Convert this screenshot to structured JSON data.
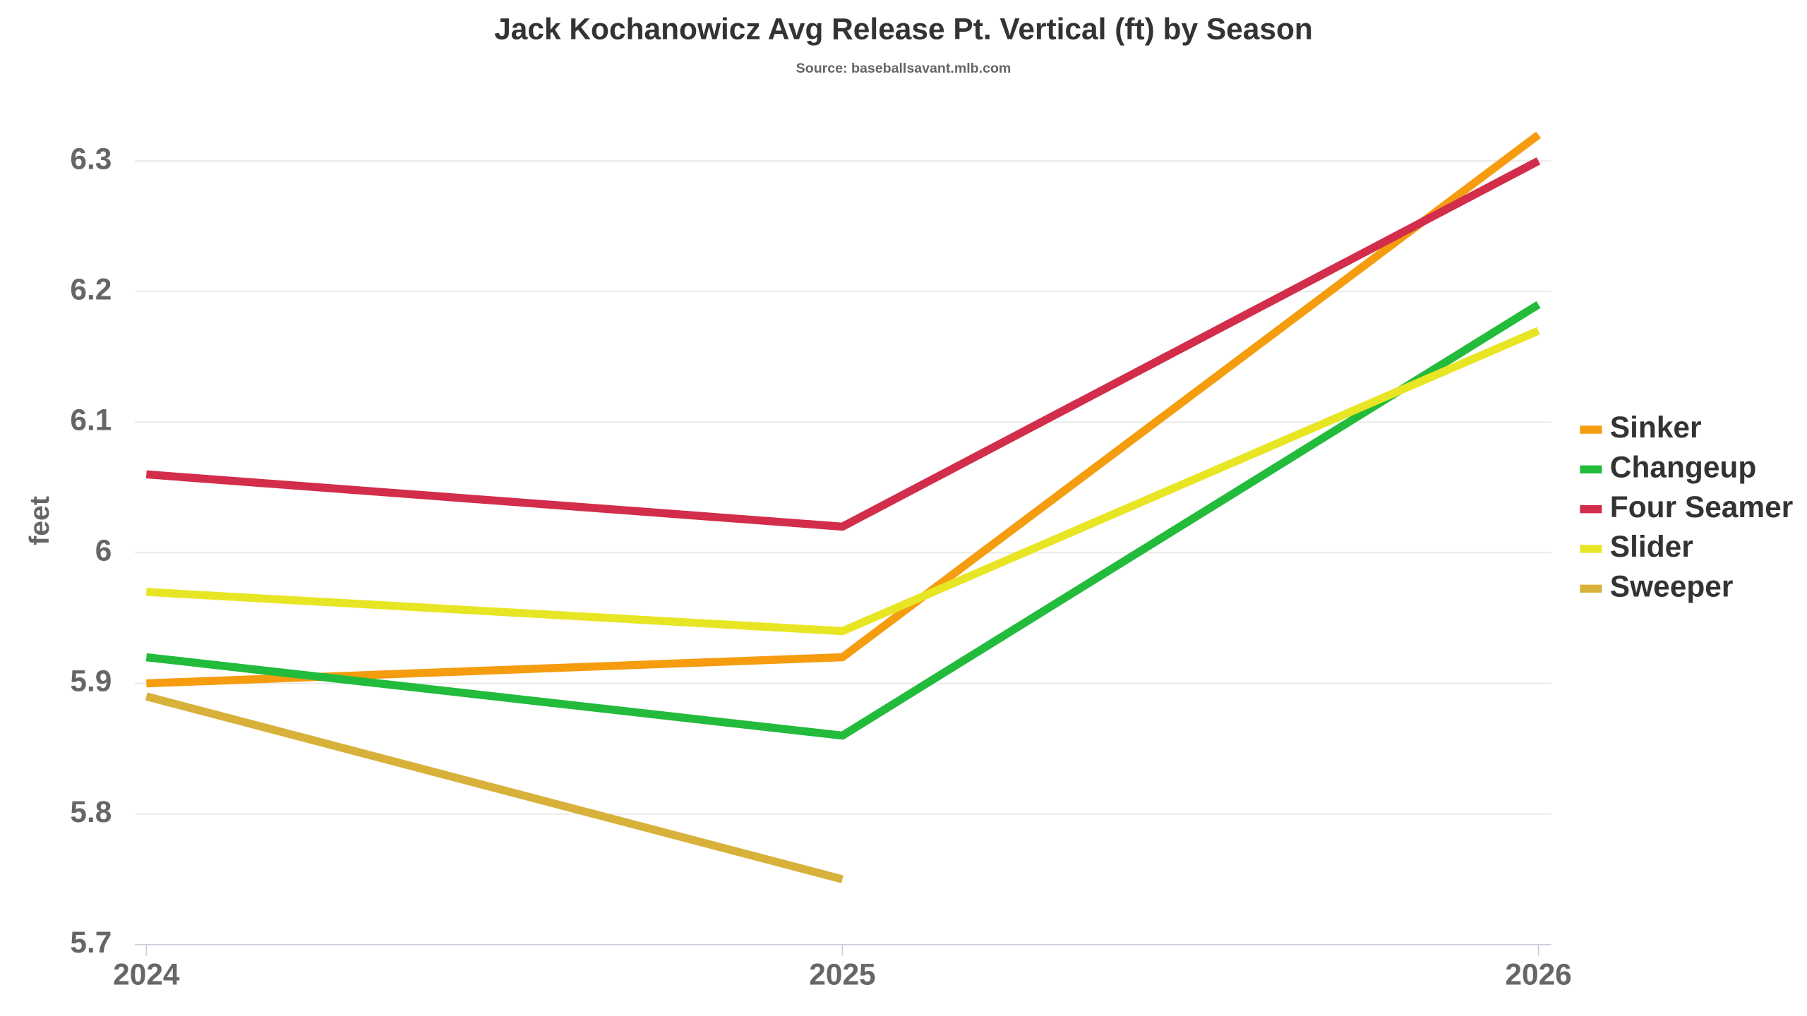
{
  "chart_data": {
    "type": "line",
    "title": "Jack Kochanowicz Avg Release Pt. Vertical (ft) by Season",
    "subtitle": "Source: baseballsavant.mlb.com",
    "y_label": "feet",
    "x": [
      2024,
      2025,
      2026
    ],
    "xlim": [
      2024,
      2026
    ],
    "xticks": [
      2024,
      2025,
      2026
    ],
    "ylim": [
      5.7,
      6.35
    ],
    "yticks": [
      5.7,
      5.8,
      5.9,
      6,
      6.1,
      6.2,
      6.3
    ],
    "grid": true,
    "legend": "right",
    "series": [
      {
        "name": "Sinker",
        "color": "#f59c0f",
        "values": [
          5.9,
          5.92,
          6.32
        ]
      },
      {
        "name": "Changeup",
        "color": "#22bb3b",
        "values": [
          5.92,
          5.86,
          6.19
        ]
      },
      {
        "name": "Four Seamer",
        "color": "#d22d4b",
        "values": [
          6.06,
          6.02,
          6.3
        ]
      },
      {
        "name": "Slider",
        "color": "#e8e524",
        "values": [
          5.97,
          5.94,
          6.17
        ]
      },
      {
        "name": "Sweeper",
        "color": "#d8b13a",
        "values": [
          5.89,
          5.75,
          null
        ]
      }
    ]
  }
}
